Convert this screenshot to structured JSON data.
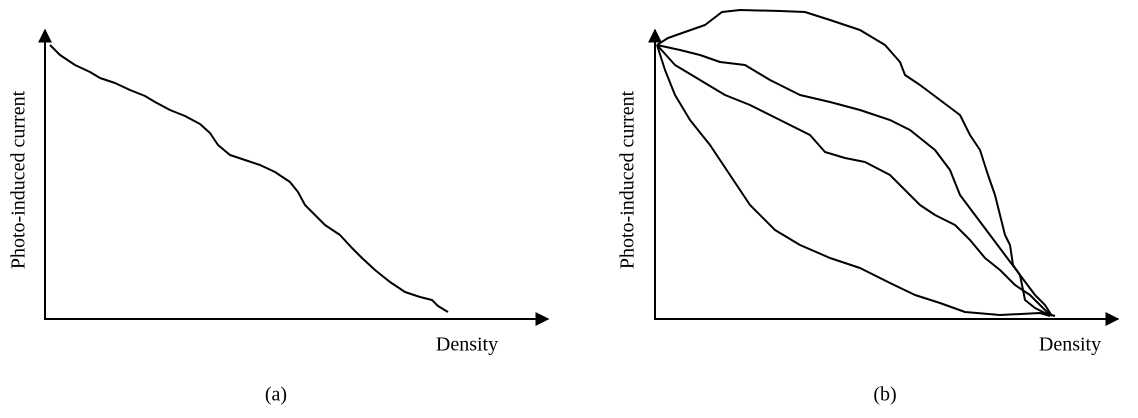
{
  "panels": [
    {
      "y_label": "Photo-induced current",
      "x_label": "Density",
      "caption": "(a)"
    },
    {
      "y_label": "Photo-induced current",
      "x_label": "Density",
      "caption": "(b)"
    }
  ]
}
